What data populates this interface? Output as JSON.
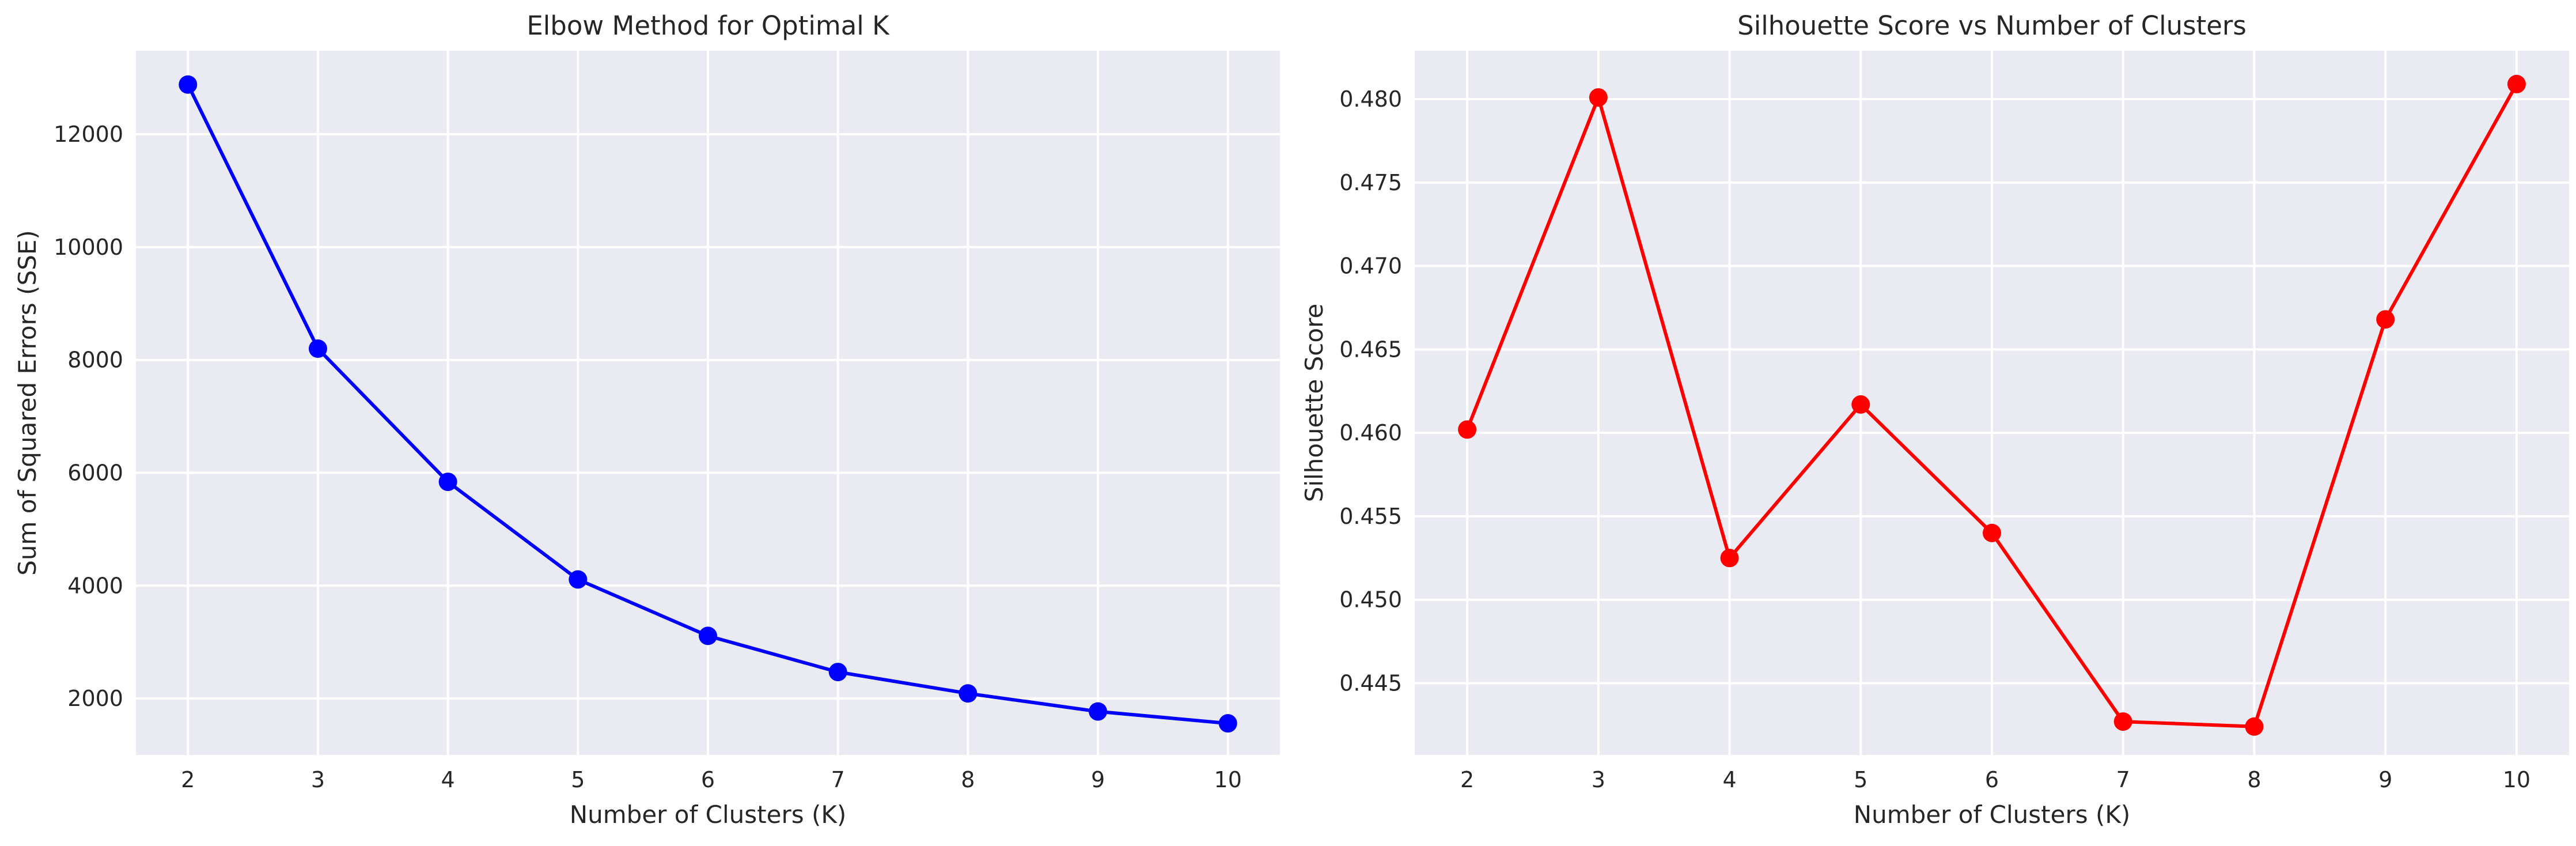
{
  "chart_data": [
    {
      "type": "line",
      "title": "Elbow Method for Optimal K",
      "xlabel": "Number of Clusters (K)",
      "ylabel": "Sum of Squared Errors (SSE)",
      "x": [
        2,
        3,
        4,
        5,
        6,
        7,
        8,
        9,
        10
      ],
      "xticks": [
        2,
        3,
        4,
        5,
        6,
        7,
        8,
        9,
        10
      ],
      "xlim": [
        1.6,
        10.4
      ],
      "ylim": [
        1000,
        13480
      ],
      "yticks": [
        2000,
        4000,
        6000,
        8000,
        10000,
        12000
      ],
      "ytick_labels": [
        "2000",
        "4000",
        "6000",
        "8000",
        "10000",
        "12000"
      ],
      "grid": true,
      "legend": "none",
      "series": [
        {
          "values": [
            12880,
            8200,
            5840,
            4110,
            3110,
            2470,
            2090,
            1770,
            1560
          ],
          "color": "#0000ff",
          "marker": "circle"
        }
      ]
    },
    {
      "type": "line",
      "title": "Silhouette Score vs Number of Clusters",
      "xlabel": "Number of Clusters (K)",
      "ylabel": "Silhouette Score",
      "x": [
        2,
        3,
        4,
        5,
        6,
        7,
        8,
        9,
        10
      ],
      "xticks": [
        2,
        3,
        4,
        5,
        6,
        7,
        8,
        9,
        10
      ],
      "xlim": [
        1.6,
        10.4
      ],
      "ylim": [
        0.4407,
        0.4829
      ],
      "yticks": [
        0.445,
        0.45,
        0.455,
        0.46,
        0.465,
        0.47,
        0.475,
        0.48
      ],
      "ytick_labels": [
        "0.445",
        "0.450",
        "0.455",
        "0.460",
        "0.465",
        "0.470",
        "0.475",
        "0.480"
      ],
      "grid": true,
      "legend": "none",
      "series": [
        {
          "values": [
            0.4602,
            0.4801,
            0.4525,
            0.4617,
            0.454,
            0.4427,
            0.4424,
            0.4668,
            0.4809
          ],
          "color": "#ff0000",
          "marker": "circle"
        }
      ]
    }
  ]
}
